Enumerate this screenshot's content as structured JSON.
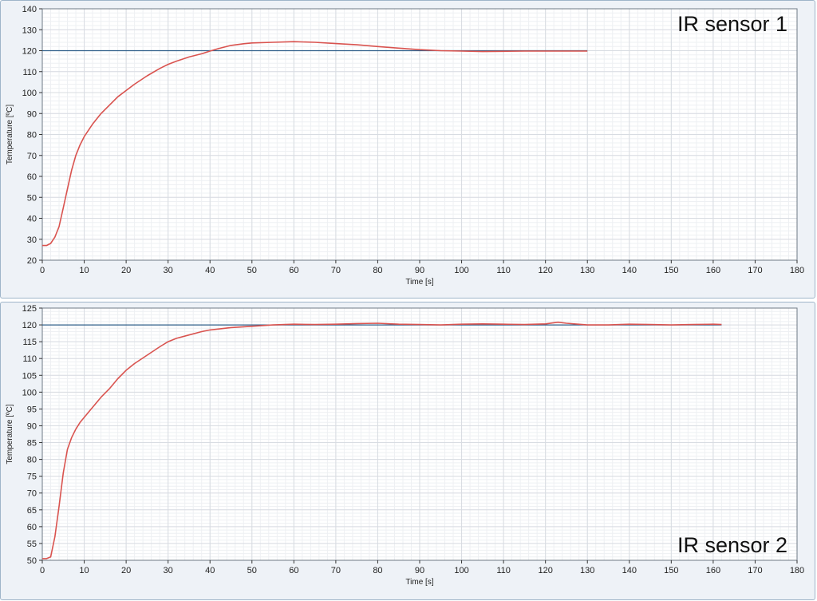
{
  "chart_data": [
    {
      "type": "line",
      "title": "IR sensor 1",
      "xlabel": "Time [s]",
      "ylabel": "Temperature [ºC]",
      "xlim": [
        0,
        180
      ],
      "ylim": [
        20,
        140
      ],
      "x_ticks": [
        0,
        10,
        20,
        30,
        40,
        50,
        60,
        70,
        80,
        90,
        100,
        110,
        120,
        130,
        140,
        150,
        160,
        170,
        180
      ],
      "y_ticks": [
        20,
        30,
        40,
        50,
        60,
        70,
        80,
        90,
        100,
        110,
        120,
        130,
        140
      ],
      "grid": true,
      "colors": {
        "measured": "#d9534f",
        "setpoint": "#2f5f8a"
      },
      "series": [
        {
          "x": [
            0,
            1,
            2,
            3,
            4,
            5,
            6,
            7,
            8,
            9,
            10,
            12,
            14,
            16,
            18,
            20,
            22,
            25,
            28,
            30,
            32,
            35,
            38,
            40,
            42,
            45,
            48,
            50,
            55,
            60,
            65,
            70,
            75,
            80,
            85,
            90,
            95,
            100,
            105,
            110,
            115,
            120,
            125,
            130
          ],
          "y": [
            27,
            27,
            28,
            31,
            36,
            45,
            54,
            63,
            70,
            75,
            79,
            85,
            90,
            94,
            98,
            101,
            104,
            108,
            111.5,
            113.5,
            115,
            117,
            118.5,
            119.8,
            121,
            122.5,
            123.3,
            123.7,
            124,
            124.3,
            124,
            123.4,
            122.8,
            122,
            121.2,
            120.5,
            120,
            119.8,
            119.6,
            119.7,
            119.8,
            119.8,
            119.8,
            119.8
          ]
        },
        {
          "x": [
            0,
            130
          ],
          "y": [
            120,
            120
          ]
        }
      ]
    },
    {
      "type": "line",
      "title": "IR sensor 2",
      "xlabel": "Time [s]",
      "ylabel": "Temperature [ºC]",
      "xlim": [
        0,
        180
      ],
      "ylim": [
        50,
        125
      ],
      "x_ticks": [
        0,
        10,
        20,
        30,
        40,
        50,
        60,
        70,
        80,
        90,
        100,
        110,
        120,
        130,
        140,
        150,
        160,
        170,
        180
      ],
      "y_ticks": [
        50,
        55,
        60,
        65,
        70,
        75,
        80,
        85,
        90,
        95,
        100,
        105,
        110,
        115,
        120,
        125
      ],
      "grid": true,
      "colors": {
        "measured": "#d9534f",
        "setpoint": "#2f5f8a"
      },
      "series": [
        {
          "x": [
            0,
            1,
            2,
            3,
            4,
            5,
            6,
            7,
            8,
            9,
            10,
            12,
            14,
            16,
            18,
            20,
            22,
            25,
            28,
            30,
            32,
            35,
            38,
            40,
            45,
            50,
            55,
            60,
            65,
            70,
            75,
            80,
            85,
            90,
            95,
            100,
            105,
            110,
            115,
            120,
            123,
            125,
            130,
            135,
            140,
            145,
            150,
            155,
            160,
            162
          ],
          "y": [
            50.5,
            50.5,
            51,
            57,
            66,
            76,
            83,
            86.5,
            89,
            91,
            92.5,
            95.5,
            98.5,
            101,
            104,
            106.5,
            108.5,
            111,
            113.5,
            115,
            116,
            117,
            118,
            118.5,
            119.2,
            119.6,
            120,
            120.2,
            120.1,
            120.2,
            120.4,
            120.5,
            120.2,
            120.1,
            120,
            120.2,
            120.3,
            120.2,
            120.1,
            120.3,
            120.8,
            120.5,
            120,
            120,
            120.2,
            120.1,
            120,
            120.1,
            120.2,
            120.1
          ]
        },
        {
          "x": [
            0,
            162
          ],
          "y": [
            120,
            120
          ]
        }
      ]
    }
  ]
}
